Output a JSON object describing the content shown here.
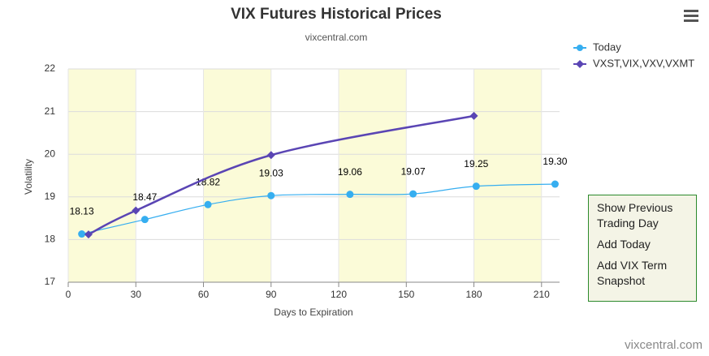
{
  "chart_data": {
    "type": "line",
    "title": "VIX Futures Historical Prices",
    "subtitle": "vixcentral.com",
    "x_label": "Days to Expiration",
    "y_label": "Volatility",
    "xlim": [
      0,
      218
    ],
    "xticks": [
      0,
      30,
      60,
      90,
      120,
      150,
      180,
      210
    ],
    "ylim": [
      17,
      22
    ],
    "yticks": [
      17,
      18,
      19,
      20,
      21,
      22
    ],
    "grid": true,
    "legend": "top-right",
    "series": [
      {
        "name": "Today",
        "color": "#36aef0",
        "marker": "circle",
        "x": [
          6,
          34,
          62,
          90,
          125,
          153,
          181,
          216
        ],
        "values": [
          18.13,
          18.47,
          18.82,
          19.03,
          19.06,
          19.07,
          19.25,
          19.3
        ],
        "value_labels": [
          "18.13",
          "18.47",
          "18.82",
          "19.03",
          "19.06",
          "19.07",
          "19.25",
          "19.30"
        ]
      },
      {
        "name": "VXST,VIX,VXV,VXMT",
        "color": "#5a45b4",
        "marker": "diamond",
        "x": [
          9,
          30,
          90,
          180
        ],
        "values": [
          18.12,
          18.68,
          19.98,
          20.9
        ]
      }
    ]
  },
  "menu": {
    "items": [
      "Show Previous Trading Day",
      "Add Today",
      "Add VIX Term Snapshot"
    ]
  },
  "credits": "vixcentral.com"
}
